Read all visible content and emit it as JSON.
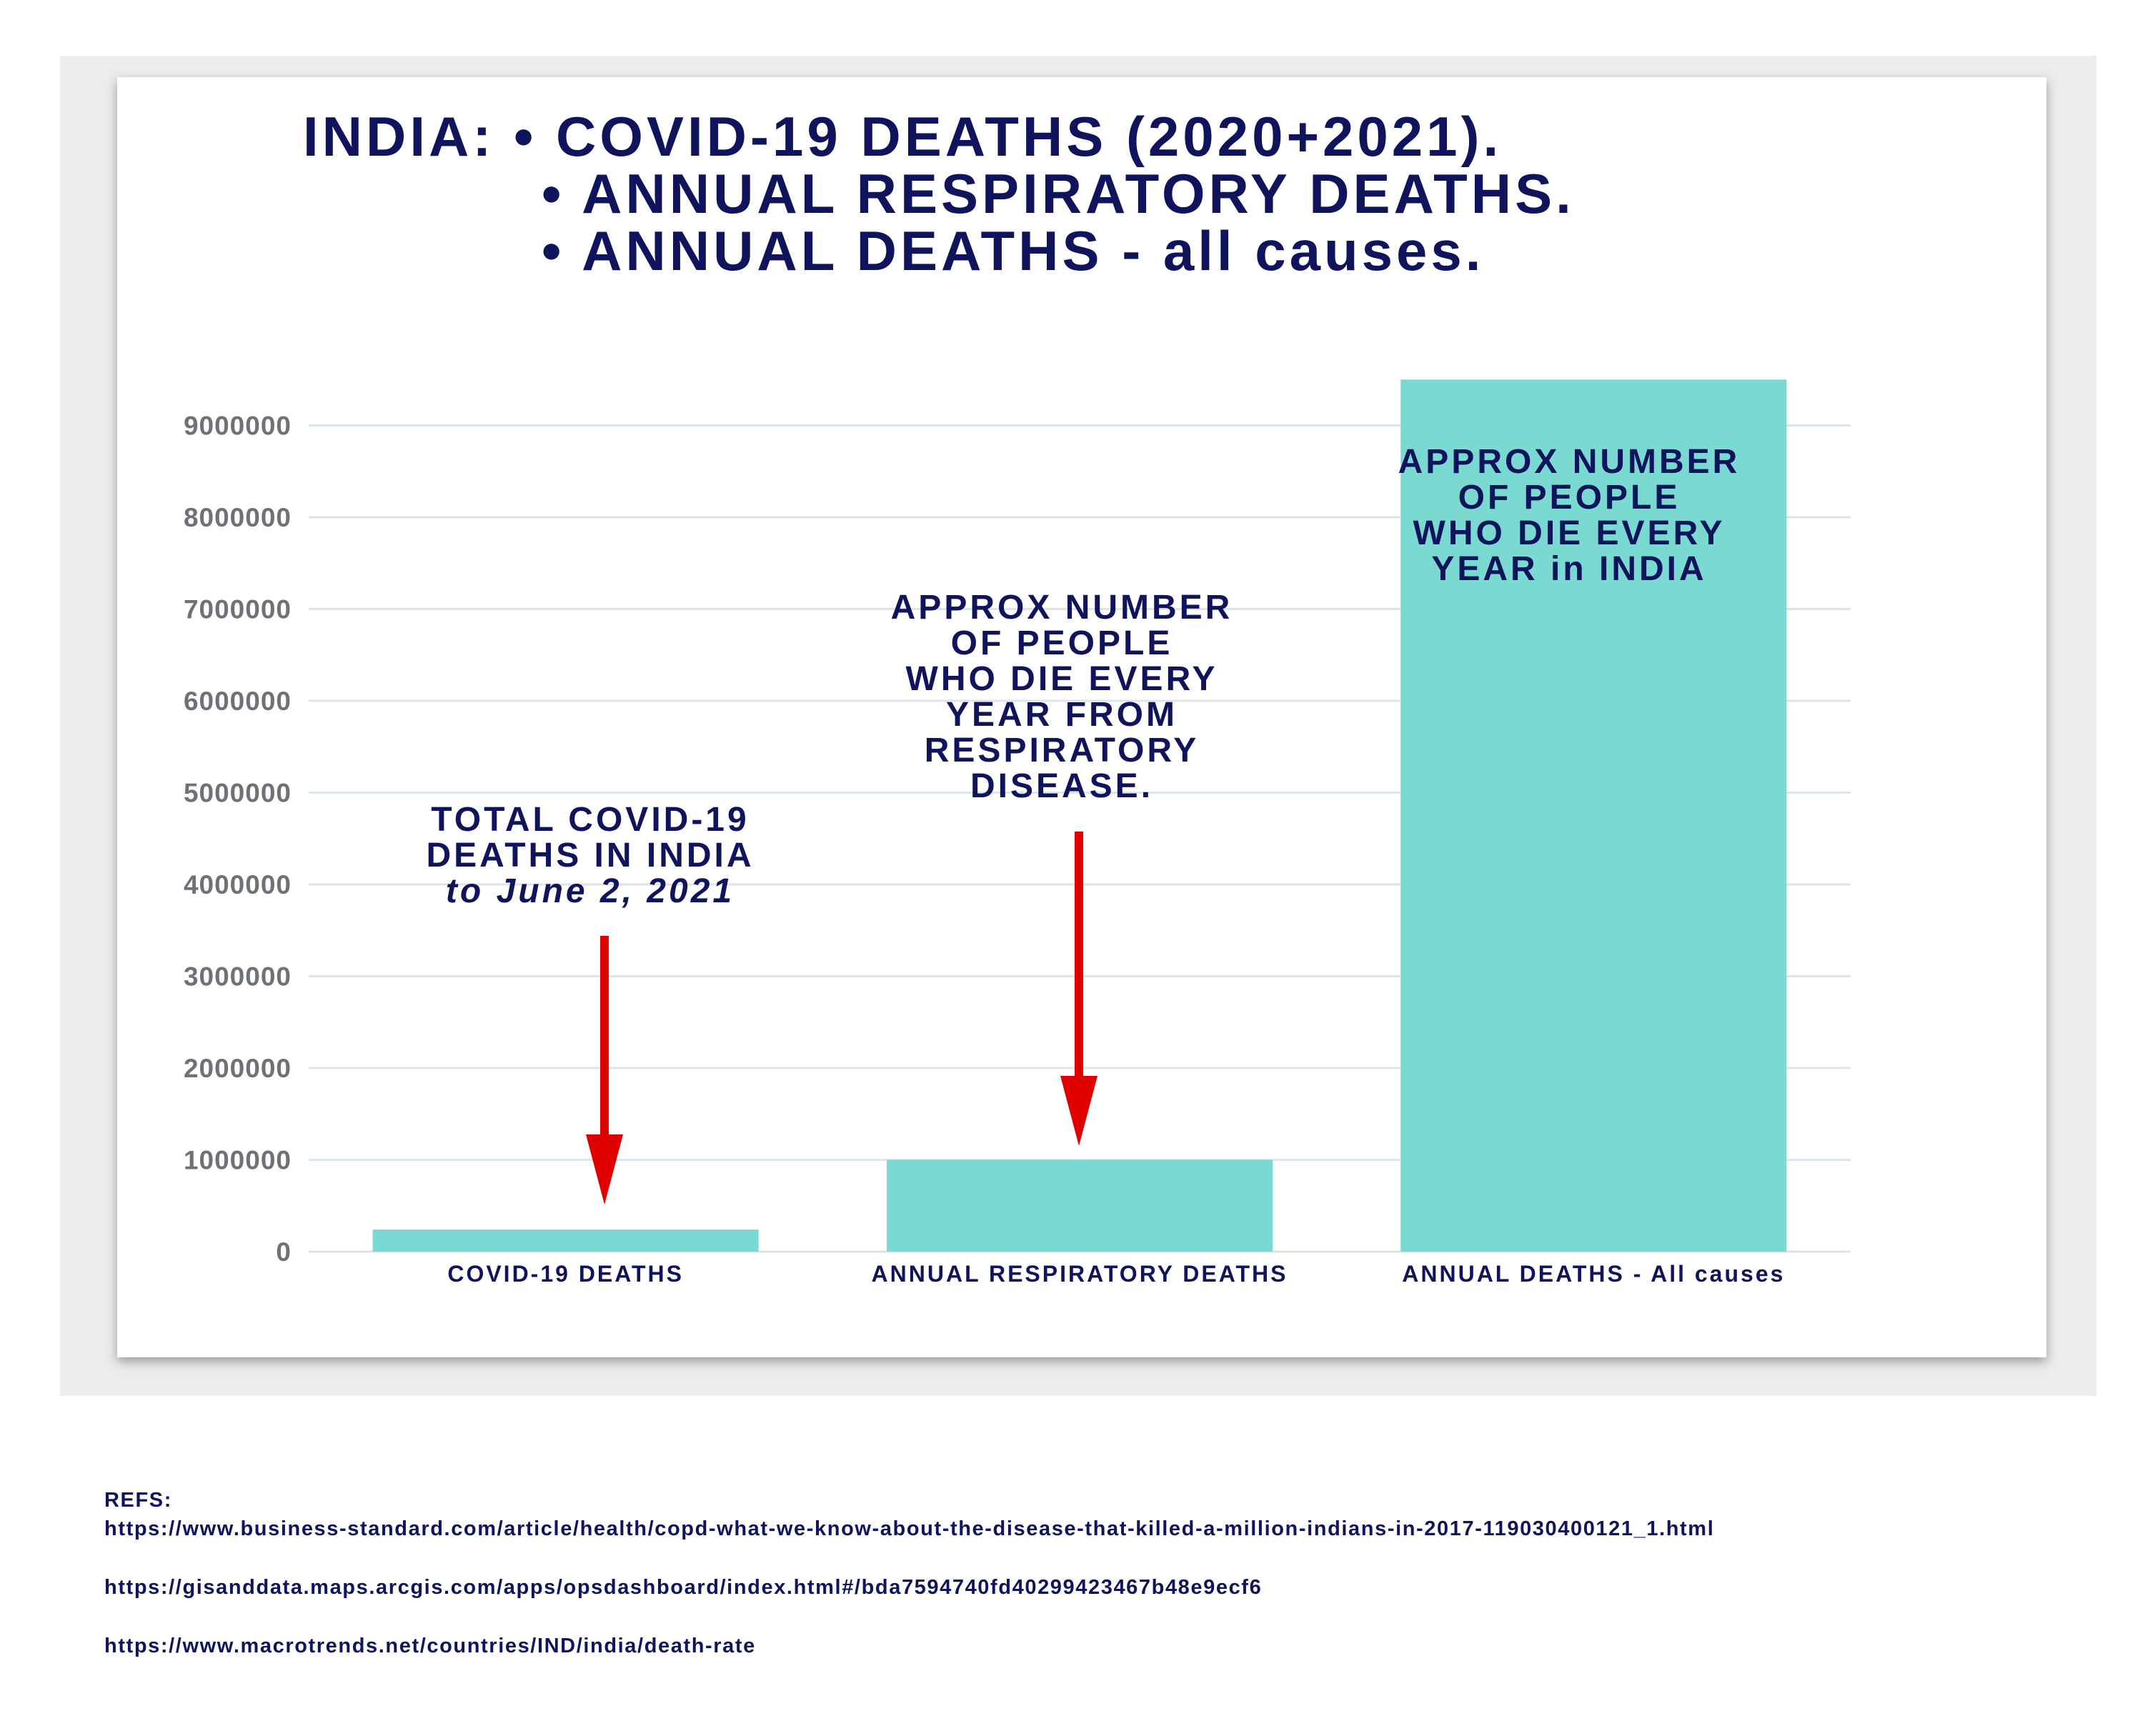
{
  "title": {
    "line1": "INDIA: • COVID-19 DEATHS (2020+2021).",
    "line2": "• ANNUAL RESPIRATORY DEATHS.",
    "line3": "• ANNUAL DEATHS - all causes."
  },
  "annotations": {
    "covid": [
      "TOTAL COVID-19",
      "DEATHS IN INDIA",
      "to June 2, 2021"
    ],
    "respiratory": [
      "APPROX NUMBER",
      "OF PEOPLE",
      "WHO DIE EVERY",
      "YEAR FROM",
      "RESPIRATORY",
      "DISEASE."
    ],
    "all_causes": [
      "APPROX NUMBER",
      "OF PEOPLE",
      "WHO DIE EVERY",
      "YEAR in INDIA"
    ]
  },
  "refs": {
    "label": "REFS:",
    "links": [
      "https://www.business-standard.com/article/health/copd-what-we-know-about-the-disease-that-killed-a-million-indians-in-2017-119030400121_1.html",
      "https://gisanddata.maps.arcgis.com/apps/opsdashboard/index.html#/bda7594740fd40299423467b48e9ecf6",
      "https://www.macrotrends.net/countries/IND/india/death-rate"
    ]
  },
  "colors": {
    "bar": "#7ad9d0",
    "text": "#10145c",
    "tick": "#6e7276",
    "grid": "#dde5ec",
    "arrow": "#e00000"
  },
  "chart_data": {
    "type": "bar",
    "categories": [
      "COVID-19 DEATHS",
      "ANNUAL RESPIRATORY DEATHS",
      "ANNUAL DEATHS - All causes"
    ],
    "values": [
      240000,
      1000000,
      9500000
    ],
    "yticks": [
      0,
      1000000,
      2000000,
      3000000,
      4000000,
      5000000,
      6000000,
      7000000,
      8000000,
      9000000
    ],
    "ytick_labels": [
      "0",
      "1000000",
      "2000000",
      "3000000",
      "4000000",
      "5000000",
      "6000000",
      "7000000",
      "8000000",
      "9000000"
    ],
    "ylim": [
      0,
      9500000
    ],
    "grid": true,
    "legend": false
  }
}
